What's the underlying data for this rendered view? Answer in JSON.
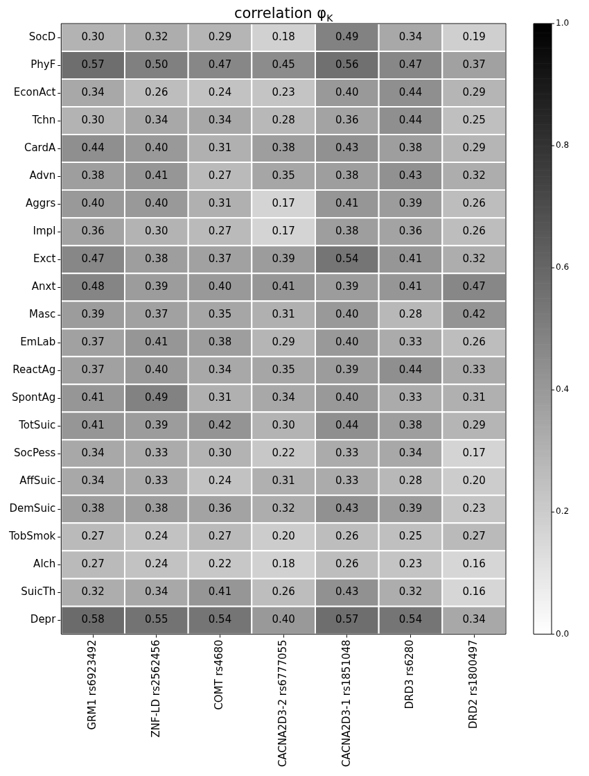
{
  "chart_data": {
    "type": "heatmap",
    "title": "correlation φ$_{K}$",
    "categories": [
      "GRM1 rs6923492",
      "ZNF-LD rs2562456",
      "COMT rs4680",
      "CACNA2D3-2 rs6777055",
      "CACNA2D3-1 rs1851048",
      "DRD3 rs6280",
      "DRD2 rs1800497"
    ],
    "y_categories": [
      "SocD",
      "PhyF",
      "EconAct",
      "Tchn",
      "CardA",
      "Advn",
      "Aggrs",
      "Impl",
      "Exct",
      "Anxt",
      "Masc",
      "EmLab",
      "ReactAg",
      "SpontAg",
      "TotSuic",
      "SocPess",
      "AffSuic",
      "DemSuic",
      "TobSmok",
      "Alch",
      "SuicTh",
      "Depr"
    ],
    "cells": [
      [
        0.3,
        0.32,
        0.29,
        0.18,
        0.49,
        0.34,
        0.19
      ],
      [
        0.57,
        0.5,
        0.47,
        0.45,
        0.56,
        0.47,
        0.37
      ],
      [
        0.34,
        0.26,
        0.24,
        0.23,
        0.4,
        0.44,
        0.29
      ],
      [
        0.3,
        0.34,
        0.34,
        0.28,
        0.36,
        0.44,
        0.25
      ],
      [
        0.44,
        0.4,
        0.31,
        0.38,
        0.43,
        0.38,
        0.29
      ],
      [
        0.38,
        0.41,
        0.27,
        0.35,
        0.38,
        0.43,
        0.32
      ],
      [
        0.4,
        0.4,
        0.31,
        0.17,
        0.41,
        0.39,
        0.26
      ],
      [
        0.36,
        0.3,
        0.27,
        0.17,
        0.38,
        0.36,
        0.26
      ],
      [
        0.47,
        0.38,
        0.37,
        0.39,
        0.54,
        0.41,
        0.32
      ],
      [
        0.48,
        0.39,
        0.4,
        0.41,
        0.39,
        0.41,
        0.47
      ],
      [
        0.39,
        0.37,
        0.35,
        0.31,
        0.4,
        0.28,
        0.42
      ],
      [
        0.37,
        0.41,
        0.38,
        0.29,
        0.4,
        0.33,
        0.26
      ],
      [
        0.37,
        0.4,
        0.34,
        0.35,
        0.39,
        0.44,
        0.33
      ],
      [
        0.41,
        0.49,
        0.31,
        0.34,
        0.4,
        0.33,
        0.31
      ],
      [
        0.41,
        0.39,
        0.42,
        0.3,
        0.44,
        0.38,
        0.29
      ],
      [
        0.34,
        0.33,
        0.3,
        0.22,
        0.33,
        0.34,
        0.17
      ],
      [
        0.34,
        0.33,
        0.24,
        0.31,
        0.33,
        0.28,
        0.2
      ],
      [
        0.38,
        0.38,
        0.36,
        0.32,
        0.43,
        0.39,
        0.23
      ],
      [
        0.27,
        0.24,
        0.27,
        0.2,
        0.26,
        0.25,
        0.27
      ],
      [
        0.27,
        0.24,
        0.22,
        0.18,
        0.26,
        0.23,
        0.16
      ],
      [
        0.32,
        0.34,
        0.41,
        0.26,
        0.43,
        0.32,
        0.16
      ],
      [
        0.58,
        0.55,
        0.54,
        0.4,
        0.57,
        0.54,
        0.34
      ]
    ],
    "cell_labels": [
      [
        "0.30",
        "0.32",
        "0.29",
        "0.18",
        "0.49",
        "0.34",
        "0.19"
      ],
      [
        "0.57",
        "0.50",
        "0.47",
        "0.45",
        "0.56",
        "0.47",
        "0.37"
      ],
      [
        "0.34",
        "0.26",
        "0.24",
        "0.23",
        "0.40",
        "0.44",
        "0.29"
      ],
      [
        "0.30",
        "0.34",
        "0.34",
        "0.28",
        "0.36",
        "0.44",
        "0.25"
      ],
      [
        "0.44",
        "0.40",
        "0.31",
        "0.38",
        "0.43",
        "0.38",
        "0.29"
      ],
      [
        "0.38",
        "0.41",
        "0.27",
        "0.35",
        "0.38",
        "0.43",
        "0.32"
      ],
      [
        "0.40",
        "0.40",
        "0.31",
        "0.17",
        "0.41",
        "0.39",
        "0.26"
      ],
      [
        "0.36",
        "0.30",
        "0.27",
        "0.17",
        "0.38",
        "0.36",
        "0.26"
      ],
      [
        "0.47",
        "0.38",
        "0.37",
        "0.39",
        "0.54",
        "0.41",
        "0.32"
      ],
      [
        "0.48",
        "0.39",
        "0.40",
        "0.41",
        "0.39",
        "0.41",
        "0.47"
      ],
      [
        "0.39",
        "0.37",
        "0.35",
        "0.31",
        "0.40",
        "0.28",
        "0.42"
      ],
      [
        "0.37",
        "0.41",
        "0.38",
        "0.29",
        "0.40",
        "0.33",
        "0.26"
      ],
      [
        "0.37",
        "0.40",
        "0.34",
        "0.35",
        "0.39",
        "0.44",
        "0.33"
      ],
      [
        "0.41",
        "0.49",
        "0.31",
        "0.34",
        "0.40",
        "0.33",
        "0.31"
      ],
      [
        "0.41",
        "0.39",
        "0.42",
        "0.30",
        "0.44",
        "0.38",
        "0.29"
      ],
      [
        "0.34",
        "0.33",
        "0.30",
        "0.22",
        "0.33",
        "0.34",
        "0.17"
      ],
      [
        "0.34",
        "0.33",
        "0.24",
        "0.31",
        "0.33",
        "0.28",
        "0.20"
      ],
      [
        "0.38",
        "0.38",
        "0.36",
        "0.32",
        "0.43",
        "0.39",
        "0.23"
      ],
      [
        "0.27",
        "0.24",
        "0.27",
        "0.20",
        "0.26",
        "0.25",
        "0.27"
      ],
      [
        "0.27",
        "0.24",
        "0.22",
        "0.18",
        "0.26",
        "0.23",
        "0.16"
      ],
      [
        "0.32",
        "0.34",
        "0.41",
        "0.26",
        "0.43",
        "0.32",
        "0.16"
      ],
      [
        "0.58",
        "0.55",
        "0.54",
        "0.40",
        "0.57",
        "0.54",
        "0.34"
      ]
    ],
    "clim": [
      0,
      1
    ],
    "cticks": [
      {
        "value": 0,
        "label": "0.0"
      },
      {
        "value": 0.2,
        "label": "0.2"
      },
      {
        "value": 0.4,
        "label": "0.4"
      },
      {
        "value": 0.6,
        "label": "0.6"
      },
      {
        "value": 0.8,
        "label": "0.8"
      },
      {
        "value": 1,
        "label": "1.0"
      }
    ]
  }
}
